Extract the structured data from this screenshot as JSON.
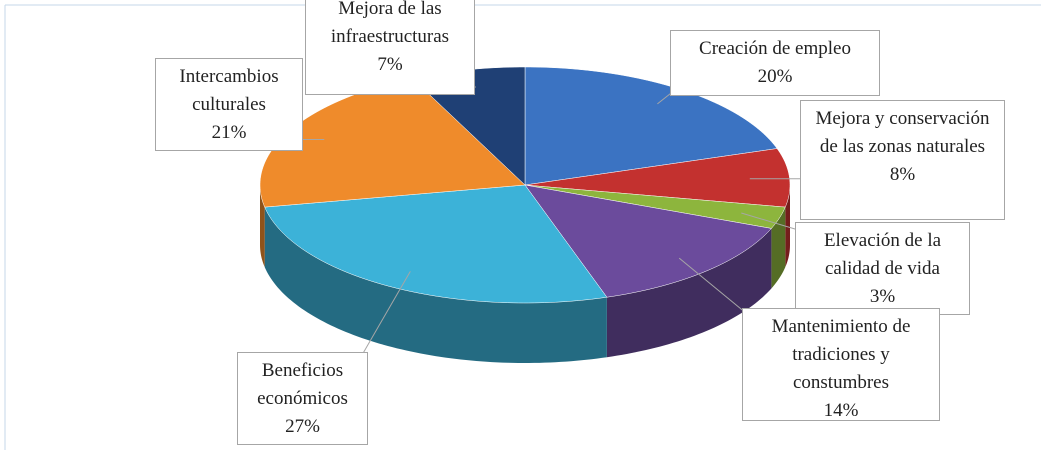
{
  "chart_data": {
    "type": "pie",
    "categories": [
      "Creación de empleo",
      "Mejora y conservación de las zonas naturales",
      "Elevación de la calidad de vida",
      "Mantenimiento de tradiciones y constumbres",
      "Beneficios económicos",
      "Intercambios culturales",
      "Mejora de las infraestructuras"
    ],
    "values": [
      20,
      8,
      3,
      14,
      27,
      21,
      7
    ],
    "value_labels": [
      "20%",
      "8%",
      "3%",
      "14%",
      "27%",
      "21%",
      "7%"
    ],
    "colors": [
      "#3b73c2",
      "#c3312f",
      "#8db53d",
      "#6b4b9c",
      "#3cb2d8",
      "#ef8b2b",
      "#1f4075"
    ]
  }
}
